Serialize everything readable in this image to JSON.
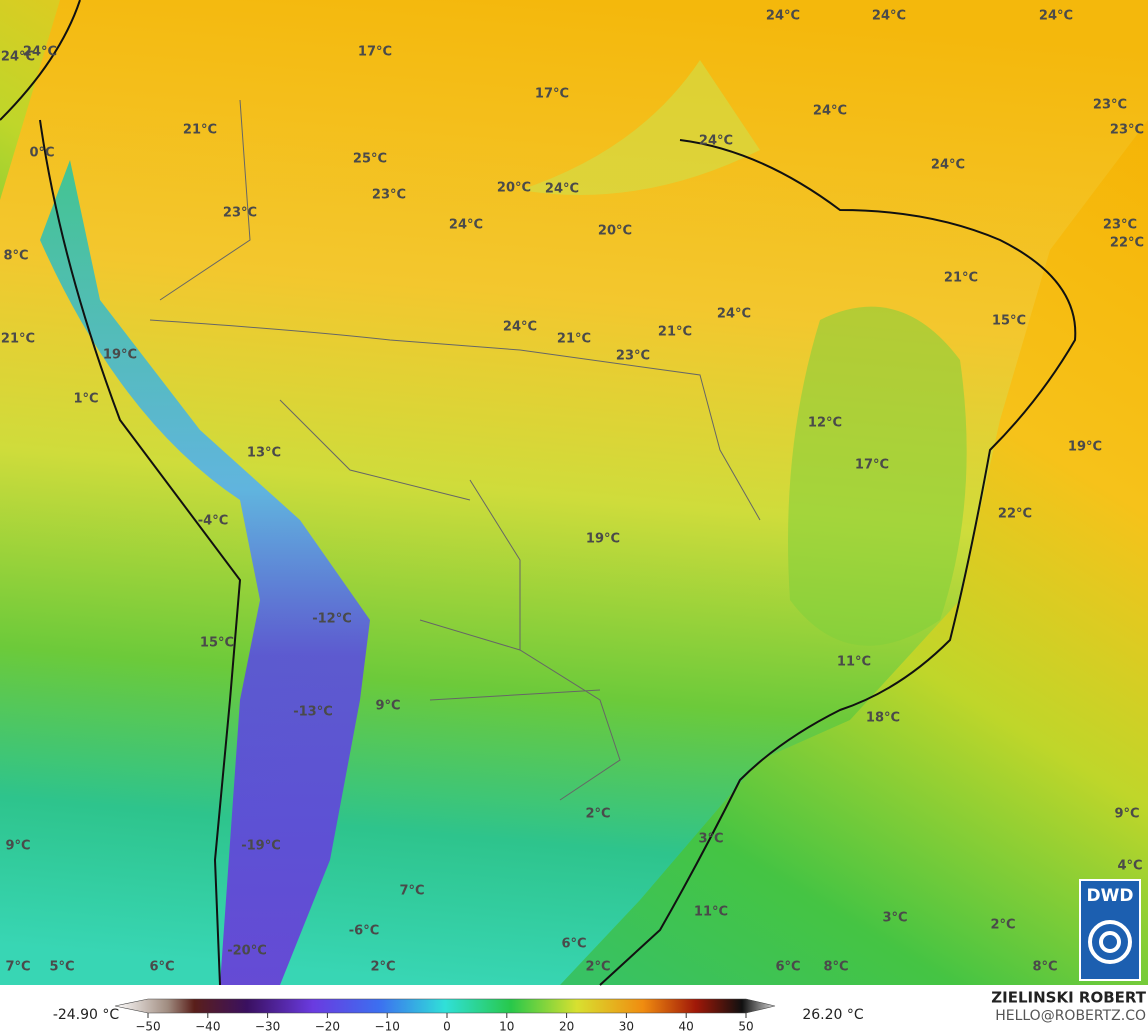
{
  "map": {
    "labels": [
      "24°C",
      "24°C",
      "24°C",
      "24°C",
      "24°C",
      "17°C",
      "17°C",
      "24°C",
      "23°C",
      "23°C",
      "21°C",
      "0°C",
      "24°C",
      "25°C",
      "24°C",
      "20°C",
      "24°C",
      "23°C",
      "23°C",
      "24°C",
      "20°C",
      "23°C",
      "22°C",
      "8°C",
      "21°C",
      "24°C",
      "21°C",
      "21°C",
      "24°C",
      "23°C",
      "15°C",
      "21°C",
      "19°C",
      "1°C",
      "12°C",
      "19°C",
      "13°C",
      "17°C",
      "22°C",
      "-4°C",
      "19°C",
      "-12°C",
      "15°C",
      "11°C",
      "9°C",
      "-13°C",
      "18°C",
      "2°C",
      "9°C",
      "3°C",
      "9°C",
      "-19°C",
      "4°C",
      "7°C",
      "11°C",
      "3°C",
      "2°C",
      "-6°C",
      "6°C",
      "-20°C",
      "7°C",
      "5°C",
      "6°C",
      "2°C",
      "2°C",
      "6°C",
      "8°C",
      "8°C"
    ]
  },
  "colorbar": {
    "min_label": "-24.90 °C",
    "max_label": "26.20 °C",
    "lim": [
      -50,
      50
    ],
    "ticks": [
      {
        "value": -50,
        "label": "−50"
      },
      {
        "value": -40,
        "label": "−40"
      },
      {
        "value": -30,
        "label": "−30"
      },
      {
        "value": -20,
        "label": "−20"
      },
      {
        "value": -10,
        "label": "−10"
      },
      0,
      10,
      20,
      30,
      40,
      50
    ]
  },
  "credits": {
    "author": "ZIELINSKI ROBERT",
    "contact": "HELLO@ROBERTZ.CO",
    "logo": "DWD"
  }
}
